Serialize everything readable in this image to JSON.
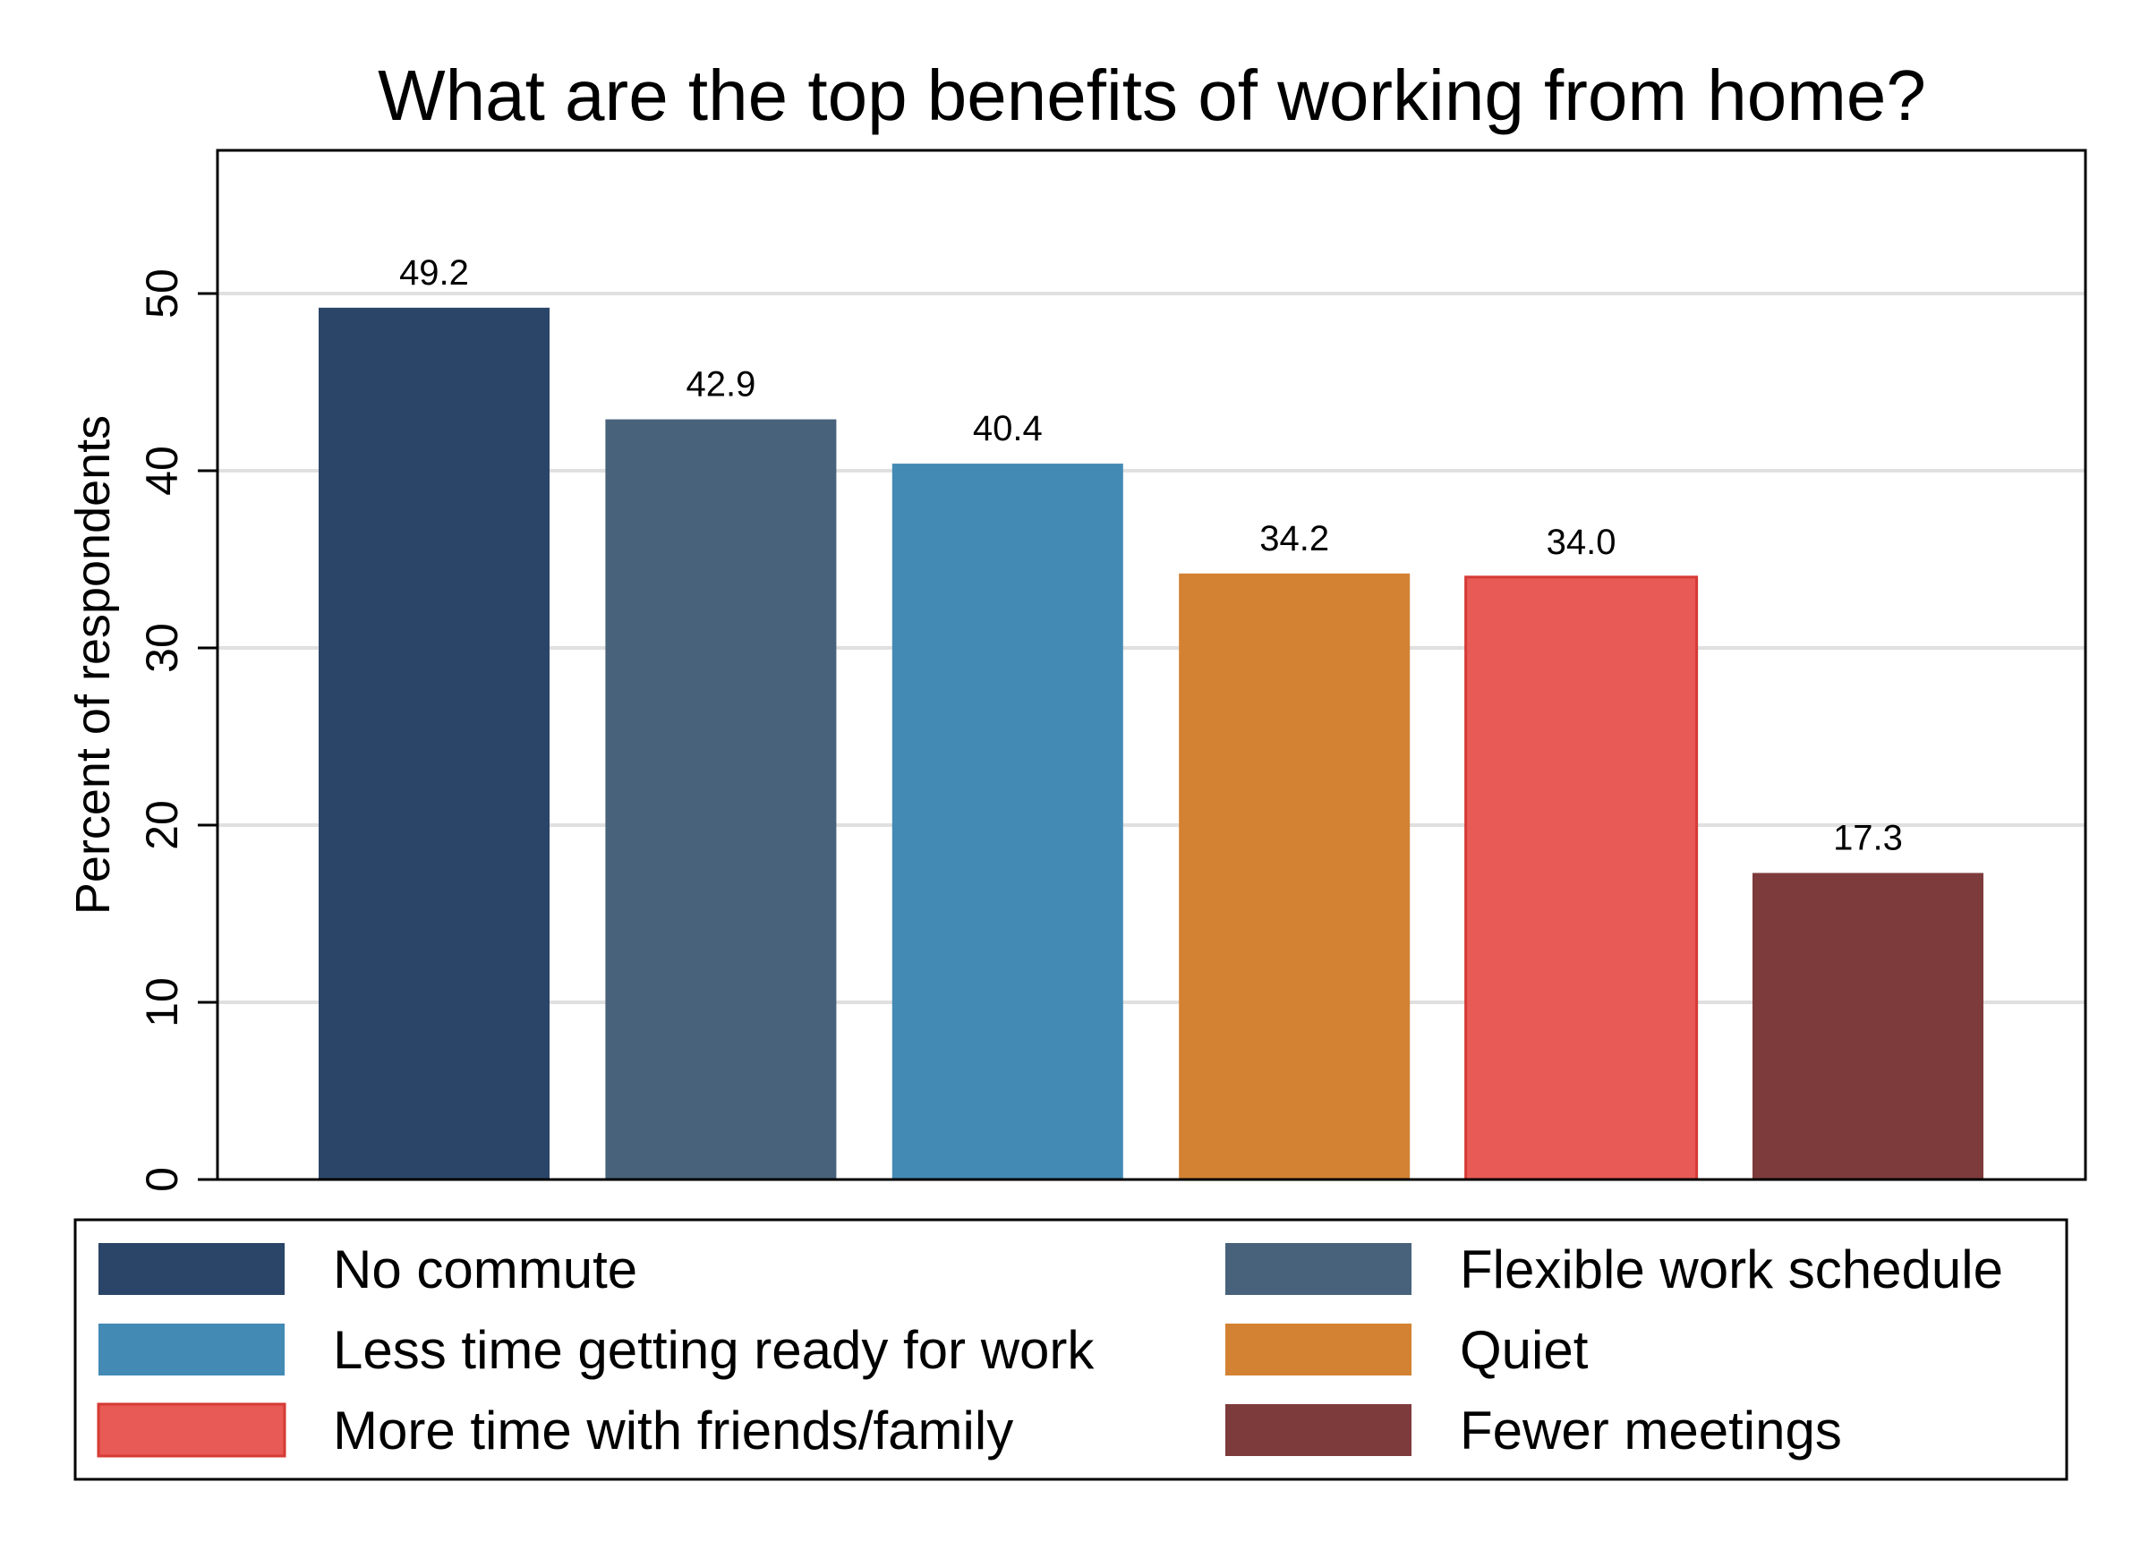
{
  "chart_data": {
    "type": "bar",
    "title": "What are the top benefits of working from home?",
    "xlabel": "",
    "ylabel": "Percent of respondents",
    "ylim": [
      0,
      58
    ],
    "yticks": [
      0,
      10,
      20,
      30,
      40,
      50
    ],
    "grid": true,
    "legend_position": "bottom",
    "series": [
      {
        "name": "No commute",
        "value": 49.2,
        "label": "49.2",
        "color": "#2b4568"
      },
      {
        "name": "Flexible work schedule",
        "value": 42.9,
        "label": "42.9",
        "color": "#48627b"
      },
      {
        "name": "Less time getting ready for work",
        "value": 40.4,
        "label": "40.4",
        "color": "#438ab5"
      },
      {
        "name": "Quiet",
        "value": 34.2,
        "label": "34.2",
        "color": "#d38233"
      },
      {
        "name": "More time with friends/family",
        "value": 34.0,
        "label": "34.0",
        "color": "#e85a55"
      },
      {
        "name": "Fewer meetings",
        "value": 17.3,
        "label": "17.3",
        "color": "#7e3b3c"
      }
    ]
  }
}
